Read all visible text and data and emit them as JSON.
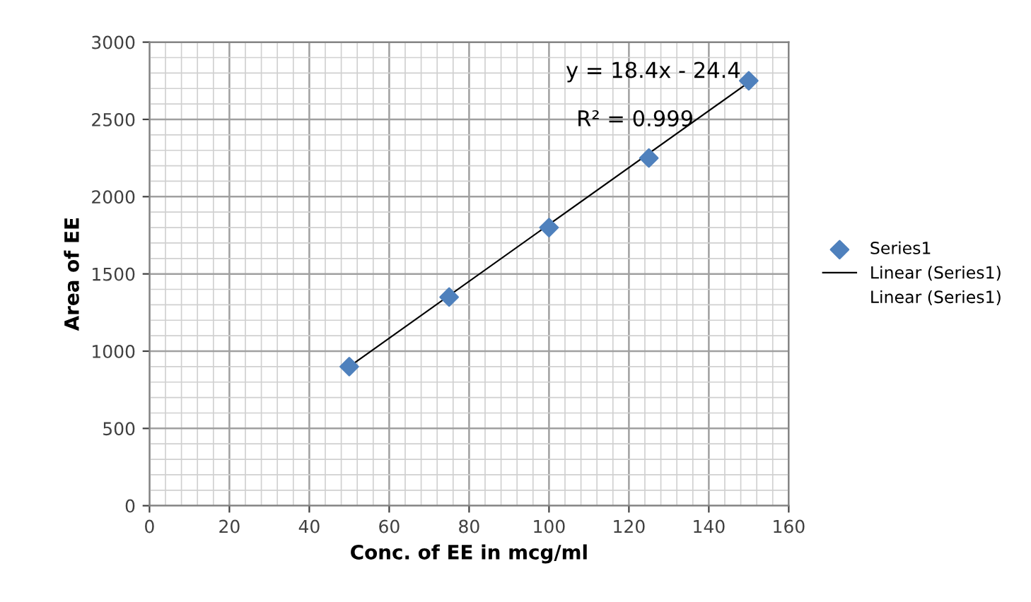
{
  "chart_data": {
    "type": "scatter",
    "xlabel": "Conc. of EE in mcg/ml",
    "ylabel": "Area of EE",
    "x": [
      50,
      75,
      100,
      125,
      150
    ],
    "series": [
      {
        "name": "Series1",
        "color": "#4f81bd",
        "marker": "diamond",
        "values": [
          900,
          1350,
          1800,
          2250,
          2750
        ]
      },
      {
        "name": "Linear (Series1)",
        "type": "line",
        "color": "#000000",
        "marker": "none",
        "line_style": "solid",
        "x": [
          50,
          150
        ],
        "values": [
          900,
          2740
        ]
      }
    ],
    "annotations": [
      {
        "text": "y = 18.4x - 24.4",
        "x": 150,
        "y": 2740
      },
      {
        "text": "R² = 0.999",
        "x": 150,
        "y": 2740
      },
      "Linear (Series1)"
    ],
    "xlim": [
      0,
      160
    ],
    "xticks": [
      0,
      20,
      40,
      60,
      80,
      100,
      120,
      140,
      160
    ],
    "ylim": [
      0,
      3000
    ],
    "yticks": [
      0,
      500,
      1000,
      1500,
      2000,
      2500,
      3000
    ],
    "grid": true,
    "legend": "right"
  }
}
